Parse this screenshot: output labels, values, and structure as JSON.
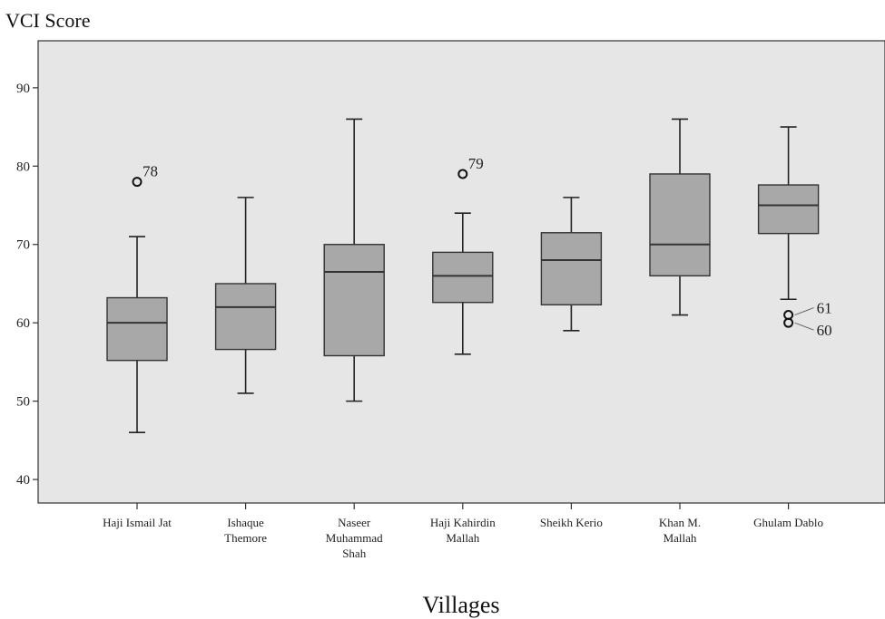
{
  "chart_data": {
    "type": "box",
    "ylabel": "VCI Score",
    "xlabel": "Villages",
    "ylim": [
      37,
      96
    ],
    "yticks": [
      "40",
      "50",
      "60",
      "70",
      "80",
      "90"
    ],
    "grid": false,
    "categories": [
      {
        "label_lines": [
          "Haji Ismail Jat"
        ],
        "min": 46,
        "q1": 55.2,
        "median": 60,
        "q3": 63.2,
        "max": 71,
        "outliers": [
          {
            "value": 78,
            "label": "78"
          }
        ]
      },
      {
        "label_lines": [
          "Ishaque",
          "Themore"
        ],
        "min": 51,
        "q1": 56.6,
        "median": 62,
        "q3": 65,
        "max": 76,
        "outliers": []
      },
      {
        "label_lines": [
          "Naseer",
          "Muhammad",
          "Shah"
        ],
        "min": 50,
        "q1": 55.8,
        "median": 66.5,
        "q3": 70,
        "max": 86,
        "outliers": []
      },
      {
        "label_lines": [
          "Haji Kahirdin",
          "Mallah"
        ],
        "min": 56,
        "q1": 62.6,
        "median": 66,
        "q3": 69,
        "max": 74,
        "outliers": [
          {
            "value": 79,
            "label": "79"
          }
        ]
      },
      {
        "label_lines": [
          "Sheikh Kerio"
        ],
        "min": 59,
        "q1": 62.3,
        "median": 68,
        "q3": 71.5,
        "max": 76,
        "outliers": []
      },
      {
        "label_lines": [
          "Khan M.",
          "Mallah"
        ],
        "min": 61,
        "q1": 66,
        "median": 70,
        "q3": 79,
        "max": 86,
        "outliers": []
      },
      {
        "label_lines": [
          "Ghulam Dablo"
        ],
        "min": 63,
        "q1": 71.4,
        "median": 75,
        "q3": 77.6,
        "max": 85,
        "outliers": [
          {
            "value": 61,
            "label": "61"
          },
          {
            "value": 60,
            "label": "60"
          }
        ]
      }
    ]
  }
}
